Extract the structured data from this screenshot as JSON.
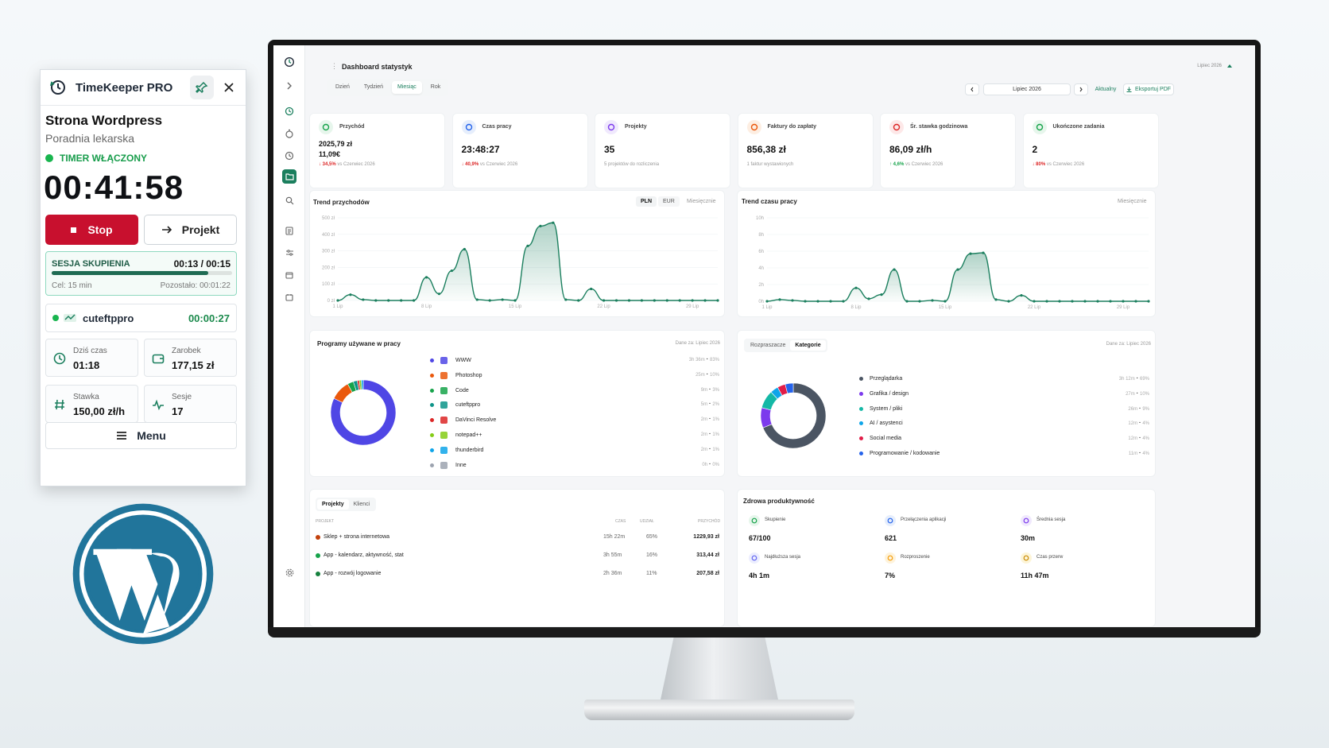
{
  "widget": {
    "title": "TimeKeeper PRO",
    "project": "Strona Wordpress",
    "client": "Poradnia lekarska",
    "status": "TIMER WŁĄCZONY",
    "clock": "00:41:58",
    "stop_label": "Stop",
    "project_label": "Projekt",
    "focus": {
      "label": "SESJA SKUPIENIA",
      "time": "00:13 / 00:15",
      "progress": 0.87,
      "goal": "Cel: 15 min",
      "remaining": "Pozostało: 00:01:22"
    },
    "app": {
      "name": "cuteftppro",
      "time": "00:00:27"
    },
    "tiles": [
      {
        "key": "Dziś czas",
        "value": "01:18"
      },
      {
        "key": "Zarobek",
        "value": "177,15 zł"
      },
      {
        "key": "Stawka",
        "value": "150,00 zł/h"
      },
      {
        "key": "Sesje",
        "value": "17"
      }
    ],
    "menu_label": "Menu"
  },
  "dashboard": {
    "title": "Dashboard statystyk",
    "month_label": "Lipiec 2026",
    "tabs": [
      "Dzień",
      "Tydzień",
      "Miesiąc",
      "Rok"
    ],
    "active_tab": 2,
    "period": "Lipiec 2026",
    "current_label": "Aktualny",
    "export_label": "Eksportuj PDF",
    "kpis": [
      {
        "key": "Przychód",
        "value": "2025,79 zł",
        "value2": "11,09€",
        "delta": "↓ 34,5%",
        "sub": "vs Czerwiec 2026",
        "dir": "down",
        "color": "#16a34a",
        "bg": "#e7f6ec"
      },
      {
        "key": "Czas pracy",
        "value": "23:48:27",
        "value2": "",
        "delta": "↓ 40,9%",
        "sub": "vs Czerwiec 2026",
        "dir": "down",
        "color": "#2563eb",
        "bg": "#e6eefc"
      },
      {
        "key": "Projekty",
        "value": "35",
        "value2": "",
        "delta": "",
        "sub": "5 projektów do rozliczenia",
        "dir": "",
        "color": "#7c3aed",
        "bg": "#f0e9fd"
      },
      {
        "key": "Faktury do zapłaty",
        "value": "856,38 zł",
        "value2": "",
        "delta": "",
        "sub": "1 faktur wystawionych",
        "dir": "",
        "color": "#ea580c",
        "bg": "#fdeee2"
      },
      {
        "key": "Śr. stawka godzinowa",
        "value": "86,09 zł/h",
        "value2": "",
        "delta": "↑ 4,6%",
        "sub": "vs Czerwiec 2026",
        "dir": "up",
        "color": "#dc2626",
        "bg": "#fde8e8"
      },
      {
        "key": "Ukończone zadania",
        "value": "2",
        "value2": "",
        "delta": "↓ 80%",
        "sub": "vs Czerwiec 2026",
        "dir": "down",
        "color": "#16a34a",
        "bg": "#e7f6ec"
      }
    ],
    "revenue_panel": {
      "title": "Trend przychodów",
      "seg": [
        "PLN",
        "EUR",
        "Miesięcznie"
      ]
    },
    "time_panel": {
      "title": "Trend czasu pracy",
      "seg": [
        "Miesięcznie"
      ]
    },
    "apps_panel": {
      "title": "Programy używane w pracy",
      "tag": "Dane za: Lipiec 2026"
    },
    "cat_panel": {
      "tabs": [
        "Rozpraszacze",
        "Kategorie"
      ],
      "tag": "Dane za: Lipiec 2026"
    },
    "projects_panel": {
      "tabs": [
        "Projekty",
        "Klienci"
      ],
      "headers": [
        "PROJEKT",
        "CZAS",
        "UDZIAŁ",
        "PRZYCHÓD"
      ],
      "rows": [
        {
          "name": "Sklep + strona internetowa",
          "time": "15h 22m",
          "share": "65%",
          "revenue": "1229,93 zł",
          "color": "#c2410c"
        },
        {
          "name": "App - kalendarz, aktywność, stat",
          "time": "3h 55m",
          "share": "16%",
          "revenue": "313,44 zł",
          "color": "#16a34a"
        },
        {
          "name": "App - rozwój logowanie",
          "time": "2h 36m",
          "share": "11%",
          "revenue": "207,58 zł",
          "color": "#15803d"
        }
      ]
    },
    "health_panel": {
      "title": "Zdrowa produktywność",
      "cards": [
        {
          "key": "Skupienie",
          "value": "67/100",
          "color": "#16a34a",
          "bg": "#e7f6ec"
        },
        {
          "key": "Przełączenia aplikacji",
          "value": "621",
          "color": "#2563eb",
          "bg": "#e6eefc"
        },
        {
          "key": "Średnia sesja",
          "value": "30m",
          "color": "#7c3aed",
          "bg": "#f0e9fd"
        },
        {
          "key": "Najdłuższa sesja",
          "value": "4h 1m",
          "color": "#6366f1",
          "bg": "#eceefe"
        },
        {
          "key": "Rozproszenie",
          "value": "7%",
          "color": "#f59e0b",
          "bg": "#fef3dc"
        },
        {
          "key": "Czas przerw",
          "value": "11h 47m",
          "color": "#ca8a04",
          "bg": "#fdf5d8"
        }
      ]
    }
  },
  "chart_data": [
    {
      "type": "area",
      "title": "Trend przychodów",
      "y_ticks": [
        "500 zł",
        "400 zł",
        "300 zł",
        "200 zł",
        "100 zł",
        "0 zł"
      ],
      "x_ticks": [
        "1 Lip",
        "8 Lip",
        "15 Lip",
        "22 Lip",
        "29 Lip"
      ],
      "ylim": [
        0,
        500
      ],
      "x": [
        1,
        2,
        3,
        4,
        5,
        6,
        7,
        8,
        9,
        10,
        11,
        12,
        13,
        14,
        15,
        16,
        17,
        18,
        19,
        20,
        21,
        22,
        23,
        24,
        25,
        26,
        27,
        28,
        29,
        30,
        31
      ],
      "values": [
        0,
        35,
        5,
        0,
        0,
        0,
        0,
        140,
        40,
        180,
        310,
        5,
        0,
        5,
        0,
        330,
        450,
        470,
        5,
        0,
        70,
        0,
        0,
        0,
        0,
        0,
        0,
        0,
        0,
        0,
        0
      ]
    },
    {
      "type": "area",
      "title": "Trend czasu pracy",
      "y_ticks": [
        "10h",
        "8h",
        "6h",
        "4h",
        "2h",
        "0h"
      ],
      "x_ticks": [
        "1 Lip",
        "8 Lip",
        "15 Lip",
        "22 Lip",
        "29 Lip"
      ],
      "ylim": [
        0,
        10
      ],
      "x": [
        1,
        2,
        3,
        4,
        5,
        6,
        7,
        8,
        9,
        10,
        11,
        12,
        13,
        14,
        15,
        16,
        17,
        18,
        19,
        20,
        21,
        22,
        23,
        24,
        25,
        26,
        27,
        28,
        29,
        30,
        31
      ],
      "values": [
        0,
        0.2,
        0.1,
        0,
        0,
        0,
        0,
        1.6,
        0.3,
        0.8,
        3.8,
        0,
        0,
        0.1,
        0,
        3.8,
        5.7,
        5.8,
        0.2,
        0,
        0.7,
        0,
        0,
        0,
        0,
        0,
        0,
        0,
        0,
        0,
        0
      ]
    },
    {
      "type": "pie",
      "title": "Programy używane w pracy",
      "labels": [
        "WWW",
        "Photoshop",
        "Code",
        "cuteftppro",
        "DaVinci Resolve",
        "notepad++",
        "thunderbird",
        "Inne"
      ],
      "times": [
        "3h 36m",
        "25m",
        "9m",
        "5m",
        "2m",
        "2m",
        "2m",
        "0h"
      ],
      "shares": [
        "83%",
        "10%",
        "3%",
        "2%",
        "1%",
        "1%",
        "1%",
        "0%"
      ],
      "values": [
        83,
        10,
        3,
        2,
        1,
        1,
        1,
        0
      ],
      "colors": [
        "#4f46e5",
        "#ea580c",
        "#16a34a",
        "#0d9488",
        "#dc2626",
        "#84cc16",
        "#0ea5e9",
        "#9ca3af"
      ]
    },
    {
      "type": "pie",
      "title": "Kategorie",
      "labels": [
        "Przeglądarka",
        "Grafika / design",
        "System / pliki",
        "AI / asystenci",
        "Social media",
        "Programowanie / kodowanie"
      ],
      "times": [
        "3h 12m",
        "27m",
        "26m",
        "12m",
        "12m",
        "11m"
      ],
      "shares": [
        "69%",
        "10%",
        "9%",
        "4%",
        "4%",
        "4%"
      ],
      "values": [
        69,
        10,
        9,
        4,
        4,
        4
      ],
      "colors": [
        "#4b5563",
        "#7c3aed",
        "#14b8a6",
        "#0ea5e9",
        "#e11d48",
        "#2563eb"
      ]
    }
  ]
}
